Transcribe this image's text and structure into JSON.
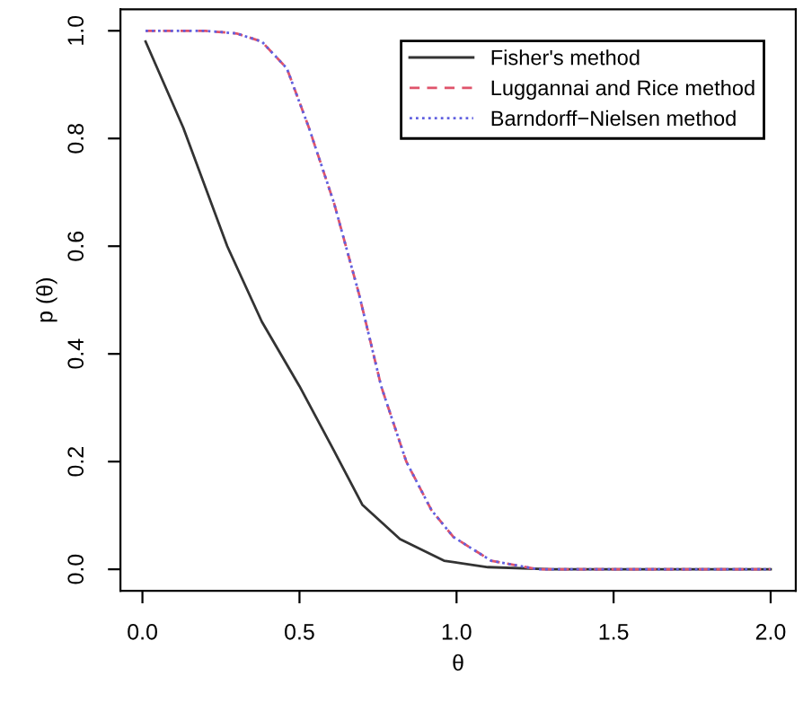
{
  "chart_data": {
    "type": "line",
    "xlabel": "θ",
    "ylabel": "p (θ)",
    "xlim": [
      -0.07,
      2.08
    ],
    "ylim": [
      -0.04,
      1.04
    ],
    "xticks": [
      {
        "value": 0,
        "label": "0.0"
      },
      0.5,
      {
        "value": 1,
        "label": "1.0"
      },
      1.5,
      {
        "value": 2,
        "label": "2.0"
      }
    ],
    "yticks": [
      {
        "value": 0,
        "label": "0.0"
      },
      0.2,
      0.4,
      0.6,
      0.8,
      {
        "value": 1,
        "label": "1.0"
      }
    ],
    "grid": false,
    "legend": "top right",
    "marker": "none",
    "series": [
      {
        "name": "Fisher's method",
        "color": "#333333",
        "line_style": "solid",
        "x": [
          0.01,
          0.13,
          0.27,
          0.38,
          0.5,
          0.61,
          0.7,
          0.82,
          0.96,
          1.1,
          1.3,
          1.6,
          2.0
        ],
        "values": [
          0.98,
          0.82,
          0.6,
          0.46,
          0.34,
          0.22,
          0.12,
          0.056,
          0.016,
          0.004,
          0,
          0,
          0
        ]
      },
      {
        "name": "Luggannai and Rice method",
        "color": "#df536b",
        "line_style": "dashed",
        "x": [
          0.01,
          0.2,
          0.3,
          0.38,
          0.46,
          0.53,
          0.61,
          0.69,
          0.76,
          0.84,
          0.92,
          0.99,
          1.11,
          1.26,
          1.5,
          2.0
        ],
        "values": [
          1.0,
          1.0,
          0.995,
          0.98,
          0.93,
          0.82,
          0.68,
          0.51,
          0.34,
          0.2,
          0.11,
          0.06,
          0.016,
          0,
          0,
          0
        ]
      },
      {
        "name": "Barndorff−Nielsen method",
        "color": "#6060e0",
        "line_style": "dotted",
        "x": [
          0.01,
          0.2,
          0.3,
          0.38,
          0.46,
          0.53,
          0.61,
          0.69,
          0.76,
          0.84,
          0.92,
          0.99,
          1.11,
          1.26,
          1.5,
          2.0
        ],
        "values": [
          1.0,
          1.0,
          0.995,
          0.98,
          0.93,
          0.82,
          0.68,
          0.51,
          0.34,
          0.2,
          0.11,
          0.06,
          0.016,
          0,
          0,
          0
        ]
      }
    ]
  }
}
